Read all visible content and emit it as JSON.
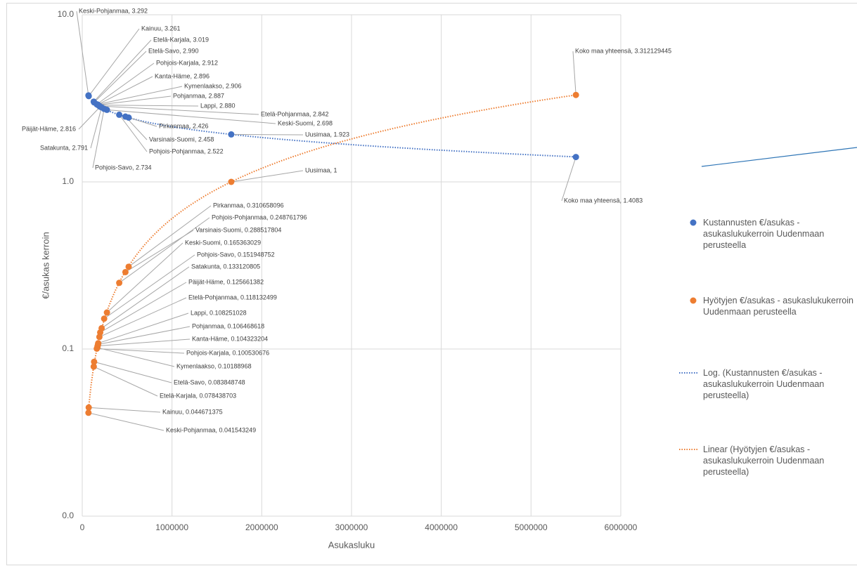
{
  "chart_data": {
    "type": "scatter",
    "y_scale": "log",
    "grid": true,
    "x_label": "Asukasluku",
    "y_label": "€/asukas kerroin",
    "xlim": [
      0,
      6000000
    ],
    "xticks": [
      0,
      1000000,
      2000000,
      3000000,
      4000000,
      5000000,
      6000000
    ],
    "ylim": [
      0.01,
      10
    ],
    "yticks": [
      {
        "value": 0.01,
        "label": "0.0"
      },
      {
        "value": 0.1,
        "label": "0.1"
      },
      {
        "value": 1,
        "label": "1.0"
      },
      {
        "value": 10,
        "label": "10.0"
      }
    ],
    "x": [
      69000,
      72000,
      128000,
      132000,
      162000,
      171000,
      168000,
      176000,
      178000,
      191000,
      275000,
      200000,
      216000,
      244000,
      517000,
      481000,
      412000,
      1660000,
      5500000
    ],
    "series": [
      {
        "name": "Kustannusten €/asukas - asukaslukukerroin Uudenmaan perusteella",
        "color": "#4472c4",
        "values": [
          3.292,
          3.261,
          3.019,
          2.99,
          2.912,
          2.896,
          2.906,
          2.887,
          2.88,
          2.842,
          2.698,
          2.816,
          2.791,
          2.734,
          2.426,
          2.458,
          2.522,
          1.923,
          1.4083
        ],
        "value_labels": [
          "Keski-Pohjanmaa, 3.292",
          "Kainuu, 3.261",
          "Etelä-Karjala, 3.019",
          "Etelä-Savo, 2.990",
          "Pohjois-Karjala, 2.912",
          "Kanta-Häme, 2.896",
          "Kymenlaakso, 2.906",
          "Pohjanmaa, 2.887",
          "Lappi, 2.880",
          "Etelä-Pohjanmaa, 2.842",
          "Keski-Suomi, 2.698",
          "Päijät-Häme, 2.816",
          "Satakunta, 2.791",
          "Pohjois-Savo, 2.734",
          "Pirkanmaa, 2.426",
          "Varsinais-Suomi, 2.458",
          "Pohjois-Pohjanmaa, 2.522",
          "Uusimaa, 1.923",
          "Koko maa yhteensä, 1.4083"
        ]
      },
      {
        "name": "Hyötyjen €/asukas - asukaslukukerroin Uudenmaan perusteella",
        "color": "#ed7d31",
        "values": [
          0.041543249,
          0.044671375,
          0.078438703,
          0.083848748,
          0.100530676,
          0.104323204,
          0.10188968,
          0.106468618,
          0.108251028,
          0.118132499,
          0.165363029,
          0.125661382,
          0.133120805,
          0.151948752,
          0.310658096,
          0.288517804,
          0.248761796,
          1,
          3.312129445
        ],
        "value_labels": [
          "Keski-Pohjanmaa, 0.041543249",
          "Kainuu, 0.044671375",
          "Etelä-Karjala, 0.078438703",
          "Etelä-Savo, 0.083848748",
          "Pohjois-Karjala, 0.100530676",
          "Kanta-Häme, 0.104323204",
          "Kymenlaakso, 0.10188968",
          "Pohjanmaa, 0.106468618",
          "Lappi, 0.108251028",
          "Etelä-Pohjanmaa, 0.118132499",
          "Keski-Suomi, 0.165363029",
          "Päijät-Häme, 0.125661382",
          "Satakunta, 0.133120805",
          "Pohjois-Savo, 0.151948752",
          "Pirkanmaa, 0.310658096",
          "Varsinais-Suomi, 0.288517804",
          "Pohjois-Pohjanmaa, 0.248761796",
          "Uusimaa, 1",
          "Koko maa yhteensä, 3.312129445"
        ]
      }
    ],
    "trendlines": [
      {
        "name": "Log. (Kustannusten €/asukas - asukaslukukerroin Uudenmaan perusteella)",
        "fit": "log",
        "series": 0,
        "color": "#4472c4"
      },
      {
        "name": "Linear (Hyötyjen €/asukas - asukaslukukerroin Uudenmaan perusteella)",
        "fit": "linear",
        "series": 1,
        "color": "#ed7d31"
      }
    ]
  }
}
